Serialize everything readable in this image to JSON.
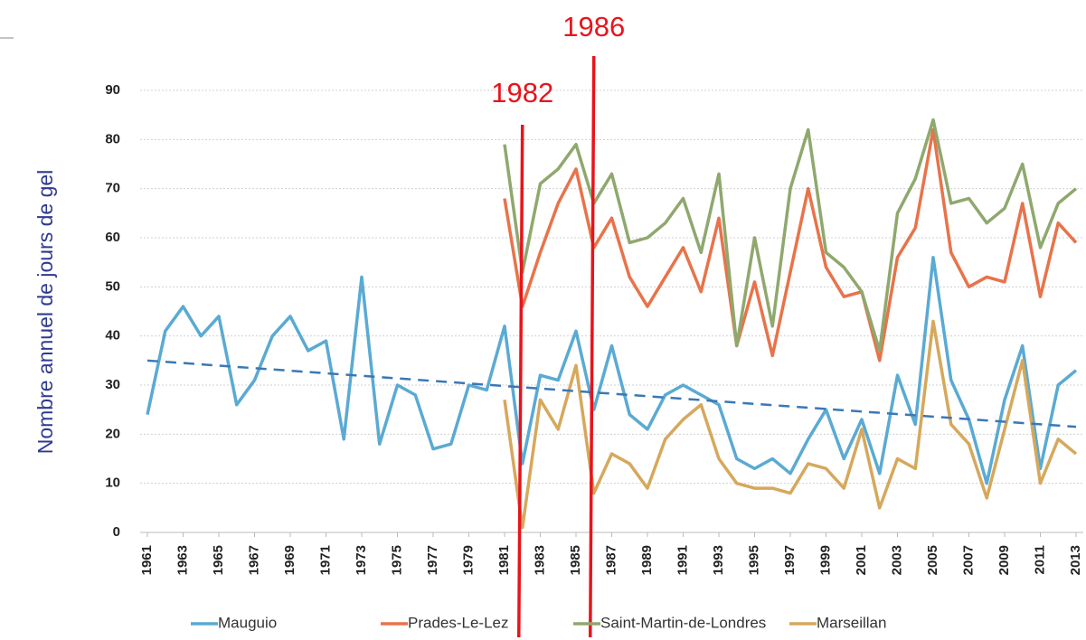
{
  "chart_data": {
    "type": "line",
    "y_label": "Nombre annuel de jours de gel",
    "x": [
      1961,
      1962,
      1963,
      1964,
      1965,
      1966,
      1967,
      1968,
      1969,
      1970,
      1971,
      1972,
      1973,
      1974,
      1975,
      1976,
      1977,
      1978,
      1979,
      1980,
      1981,
      1982,
      1983,
      1984,
      1985,
      1986,
      1987,
      1988,
      1989,
      1990,
      1991,
      1992,
      1993,
      1994,
      1995,
      1996,
      1997,
      1998,
      1999,
      2000,
      2001,
      2002,
      2003,
      2004,
      2005,
      2006,
      2007,
      2008,
      2009,
      2010,
      2011,
      2012,
      2013
    ],
    "xlim": [
      1961,
      2013
    ],
    "xticks": [
      1961,
      1963,
      1965,
      1967,
      1969,
      1971,
      1973,
      1975,
      1977,
      1979,
      1981,
      1983,
      1985,
      1987,
      1989,
      1991,
      1993,
      1995,
      1997,
      1999,
      2001,
      2003,
      2005,
      2007,
      2009,
      2011,
      2013
    ],
    "ylim": [
      0,
      90
    ],
    "yticks": [
      0,
      10,
      20,
      30,
      40,
      50,
      60,
      70,
      80,
      90
    ],
    "grid": true,
    "legend": "bottom",
    "series": [
      {
        "name": "Mauguio",
        "color": "#5aaad3",
        "values": [
          24,
          41,
          46,
          40,
          44,
          26,
          31,
          40,
          44,
          37,
          39,
          19,
          52,
          18,
          30,
          28,
          17,
          18,
          30,
          29,
          42,
          14,
          32,
          31,
          41,
          25,
          38,
          24,
          21,
          28,
          30,
          28,
          26,
          15,
          13,
          15,
          12,
          19,
          25,
          15,
          23,
          12,
          32,
          22,
          56,
          31,
          23,
          10,
          27,
          38,
          13,
          30,
          33
        ]
      },
      {
        "name": "Prades-Le-Lez",
        "color": "#e8734a",
        "values": [
          null,
          null,
          null,
          null,
          null,
          null,
          null,
          null,
          null,
          null,
          null,
          null,
          null,
          null,
          null,
          null,
          null,
          null,
          null,
          null,
          68,
          46,
          57,
          67,
          74,
          58,
          64,
          52,
          46,
          52,
          58,
          49,
          64,
          38,
          51,
          36,
          53,
          70,
          54,
          48,
          49,
          35,
          56,
          62,
          82,
          57,
          50,
          52,
          51,
          67,
          48,
          63,
          59
        ]
      },
      {
        "name": "Saint-Martin-de-Londres",
        "color": "#8fa86e",
        "values": [
          null,
          null,
          null,
          null,
          null,
          null,
          null,
          null,
          null,
          null,
          null,
          null,
          null,
          null,
          null,
          null,
          null,
          null,
          null,
          null,
          79,
          53,
          71,
          74,
          79,
          67,
          73,
          59,
          60,
          63,
          68,
          57,
          73,
          38,
          60,
          42,
          70,
          82,
          57,
          54,
          49,
          37,
          65,
          72,
          84,
          67,
          68,
          63,
          66,
          75,
          58,
          67,
          70
        ]
      },
      {
        "name": "Marseillan",
        "color": "#d6a85c",
        "values": [
          null,
          null,
          null,
          null,
          null,
          null,
          null,
          null,
          null,
          null,
          null,
          null,
          null,
          null,
          null,
          null,
          null,
          null,
          null,
          null,
          27,
          1,
          27,
          21,
          34,
          8,
          16,
          14,
          9,
          19,
          23,
          26,
          15,
          10,
          9,
          9,
          8,
          14,
          13,
          9,
          21,
          5,
          15,
          13,
          43,
          22,
          18,
          7,
          21,
          35,
          10,
          19,
          16
        ]
      }
    ],
    "trendline": {
      "color": "#3a78b5",
      "x": [
        1961,
        2013
      ],
      "values": [
        35,
        21.5
      ]
    },
    "annotations": [
      {
        "label": "1982",
        "x": 1982,
        "color": "#e8141b"
      },
      {
        "label": "1986",
        "x": 1986,
        "color": "#e8141b"
      }
    ]
  }
}
